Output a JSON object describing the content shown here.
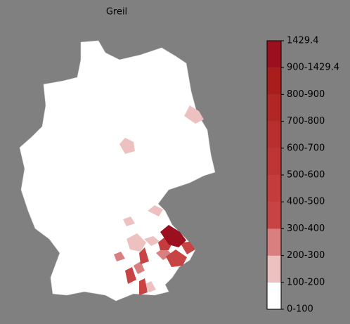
{
  "title": "Greil",
  "colorbar": {
    "labels": [
      "0-100",
      "100-200",
      "200-300",
      "300-400",
      "400-500",
      "500-600",
      "600-700",
      "700-800",
      "800-900",
      "900-1429.4",
      "1429.4"
    ],
    "colors": [
      "#ffffff",
      "#eec1c1",
      "#d97f7f",
      "#c84444",
      "#c43c3c",
      "#bf3535",
      "#b92e2e",
      "#b22626",
      "#aa1d1d",
      "#9c0f1f"
    ]
  }
}
